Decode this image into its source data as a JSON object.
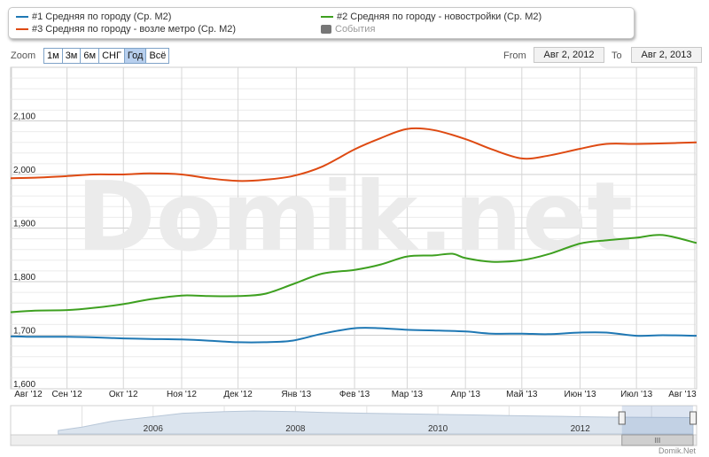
{
  "legend": {
    "items": [
      {
        "label": "#1 Средняя по городу (Ср. М2)",
        "color": "#1f78b4"
      },
      {
        "label": "#2 Средняя по городу - новостройки (Ср. М2)",
        "color": "#3ea020"
      },
      {
        "label": "#3 Средняя по городу - возле метро (Ср. М2)",
        "color": "#de4a12"
      },
      {
        "label": "События",
        "color": "#777777"
      }
    ]
  },
  "zoom": {
    "label": "Zoom",
    "buttons": [
      "1м",
      "3м",
      "6м",
      "СНГ",
      "Год",
      "Всё"
    ],
    "active": "Год"
  },
  "range": {
    "from_label": "From",
    "from_value": "Авг 2, 2012",
    "to_label": "To",
    "to_value": "Авг 2, 2013"
  },
  "watermark": "Domik.net",
  "credit": "Domik.Net",
  "chart_data": {
    "type": "line",
    "x_ticks": [
      "Авг '12",
      "Сен '12",
      "Окт '12",
      "Ноя '12",
      "Дек '12",
      "Янв '13",
      "Фев '13",
      "Мар '13",
      "Апр '13",
      "Май '13",
      "Июн '13",
      "Июл '13",
      "Авг '13"
    ],
    "y_ticks": [
      "1,600",
      "1,700",
      "1,800",
      "1,900",
      "2,000",
      "2,100"
    ],
    "ylim": [
      1600,
      2200
    ],
    "xlim": [
      "2012-08-02",
      "2013-08-02"
    ],
    "grid": true,
    "series": [
      {
        "name": "#1 Средняя по городу (Ср. М2)",
        "color": "#1f78b4",
        "points": [
          [
            "2012-08-02",
            1698
          ],
          [
            "2012-08-15",
            1697
          ],
          [
            "2012-09-01",
            1697
          ],
          [
            "2012-09-15",
            1696
          ],
          [
            "2012-10-01",
            1694
          ],
          [
            "2012-10-15",
            1693
          ],
          [
            "2012-11-01",
            1692
          ],
          [
            "2012-11-15",
            1690
          ],
          [
            "2012-12-01",
            1687
          ],
          [
            "2012-12-15",
            1687
          ],
          [
            "2012-12-30",
            1690
          ],
          [
            "2013-01-15",
            1703
          ],
          [
            "2013-02-01",
            1713
          ],
          [
            "2013-02-15",
            1713
          ],
          [
            "2013-03-01",
            1710
          ],
          [
            "2013-03-15",
            1709
          ],
          [
            "2013-04-01",
            1707
          ],
          [
            "2013-04-15",
            1703
          ],
          [
            "2013-05-01",
            1703
          ],
          [
            "2013-05-15",
            1702
          ],
          [
            "2013-06-01",
            1705
          ],
          [
            "2013-06-15",
            1705
          ],
          [
            "2013-07-01",
            1699
          ],
          [
            "2013-07-15",
            1700
          ],
          [
            "2013-08-02",
            1699
          ]
        ]
      },
      {
        "name": "#2 Средняя по городу - новостройки (Ср. М2)",
        "color": "#3ea020",
        "points": [
          [
            "2012-08-02",
            1743
          ],
          [
            "2012-08-15",
            1746
          ],
          [
            "2012-09-01",
            1747
          ],
          [
            "2012-09-15",
            1751
          ],
          [
            "2012-10-01",
            1758
          ],
          [
            "2012-10-15",
            1767
          ],
          [
            "2012-11-01",
            1774
          ],
          [
            "2012-11-15",
            1773
          ],
          [
            "2012-12-01",
            1773
          ],
          [
            "2012-12-15",
            1777
          ],
          [
            "2012-12-30",
            1795
          ],
          [
            "2013-01-15",
            1815
          ],
          [
            "2013-02-01",
            1822
          ],
          [
            "2013-02-15",
            1832
          ],
          [
            "2013-03-01",
            1847
          ],
          [
            "2013-03-15",
            1849
          ],
          [
            "2013-03-25",
            1852
          ],
          [
            "2013-04-01",
            1844
          ],
          [
            "2013-04-15",
            1837
          ],
          [
            "2013-05-01",
            1840
          ],
          [
            "2013-05-15",
            1851
          ],
          [
            "2013-06-01",
            1871
          ],
          [
            "2013-06-15",
            1877
          ],
          [
            "2013-07-01",
            1882
          ],
          [
            "2013-07-15",
            1887
          ],
          [
            "2013-08-02",
            1872
          ]
        ]
      },
      {
        "name": "#3 Средняя по городу - возле метро (Ср. М2)",
        "color": "#de4a12",
        "points": [
          [
            "2012-08-02",
            1993
          ],
          [
            "2012-08-15",
            1994
          ],
          [
            "2012-09-01",
            1997
          ],
          [
            "2012-09-15",
            2000
          ],
          [
            "2012-10-01",
            2000
          ],
          [
            "2012-10-15",
            2002
          ],
          [
            "2012-11-01",
            2000
          ],
          [
            "2012-11-15",
            1993
          ],
          [
            "2012-12-01",
            1988
          ],
          [
            "2012-12-15",
            1990
          ],
          [
            "2012-12-30",
            1997
          ],
          [
            "2013-01-15",
            2015
          ],
          [
            "2013-02-01",
            2047
          ],
          [
            "2013-02-15",
            2068
          ],
          [
            "2013-03-01",
            2085
          ],
          [
            "2013-03-15",
            2083
          ],
          [
            "2013-04-01",
            2066
          ],
          [
            "2013-04-15",
            2047
          ],
          [
            "2013-05-01",
            2030
          ],
          [
            "2013-05-15",
            2035
          ],
          [
            "2013-06-01",
            2048
          ],
          [
            "2013-06-15",
            2057
          ],
          [
            "2013-07-01",
            2057
          ],
          [
            "2013-07-15",
            2058
          ],
          [
            "2013-08-02",
            2060
          ]
        ]
      }
    ]
  },
  "navigator": {
    "ticks": [
      "2006",
      "2008",
      "2010",
      "2012"
    ],
    "series": [
      [
        "2004-09-01",
        0.15
      ],
      [
        "2005-01-01",
        0.3
      ],
      [
        "2005-06-01",
        0.55
      ],
      [
        "2006-01-01",
        0.75
      ],
      [
        "2006-06-01",
        0.9
      ],
      [
        "2007-01-01",
        0.97
      ],
      [
        "2007-06-01",
        1.0
      ],
      [
        "2008-01-01",
        0.97
      ],
      [
        "2008-06-01",
        0.93
      ],
      [
        "2009-01-01",
        0.9
      ],
      [
        "2009-06-01",
        0.88
      ],
      [
        "2010-01-01",
        0.85
      ],
      [
        "2010-06-01",
        0.83
      ],
      [
        "2011-01-01",
        0.8
      ],
      [
        "2011-06-01",
        0.78
      ],
      [
        "2012-01-01",
        0.75
      ],
      [
        "2012-06-01",
        0.73
      ],
      [
        "2013-01-01",
        0.72
      ],
      [
        "2013-08-02",
        0.71
      ]
    ],
    "selected": [
      "2012-08-02",
      "2013-08-02"
    ],
    "scrollbar_grip": "III"
  }
}
